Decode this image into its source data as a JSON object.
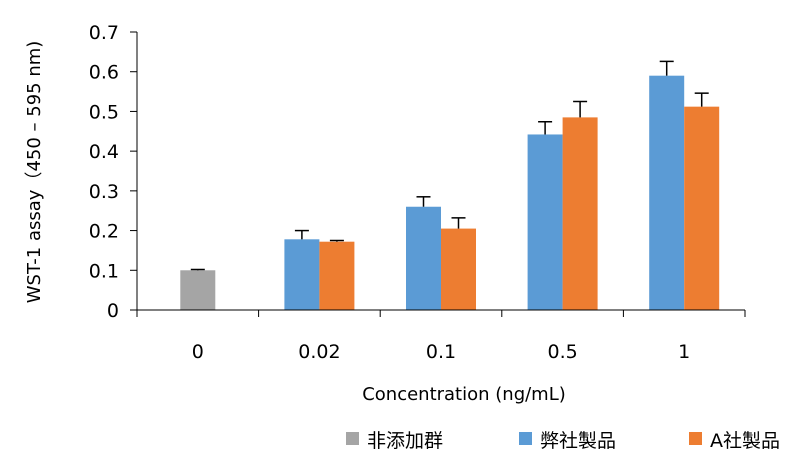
{
  "chart_data": {
    "type": "bar",
    "title": "",
    "xlabel": "Concentration (ng/mL)",
    "ylabel": "WST-1 assay（450 – 595 nm)",
    "ylim": [
      0,
      0.7
    ],
    "yticks": [
      "0",
      "0.1",
      "0.2",
      "0.3",
      "0.4",
      "0.5",
      "0.6",
      "0.7"
    ],
    "categories": [
      "0",
      "0.02",
      "0.1",
      "0.5",
      "1"
    ],
    "grid": false,
    "legend_position": "bottom-right",
    "series": [
      {
        "name": "非添加群",
        "color": "#a5a5a5",
        "values": [
          0.1,
          null,
          null,
          null,
          null
        ],
        "errors": [
          0.002,
          null,
          null,
          null,
          null
        ]
      },
      {
        "name": "弊社製品",
        "color": "#5b9bd5",
        "values": [
          null,
          0.178,
          0.26,
          0.442,
          0.59
        ],
        "errors": [
          null,
          0.022,
          0.025,
          0.032,
          0.036
        ]
      },
      {
        "name": "A社製品",
        "color": "#ed7d31",
        "values": [
          null,
          0.172,
          0.205,
          0.485,
          0.512
        ],
        "errors": [
          null,
          0.003,
          0.027,
          0.04,
          0.034
        ]
      }
    ]
  }
}
